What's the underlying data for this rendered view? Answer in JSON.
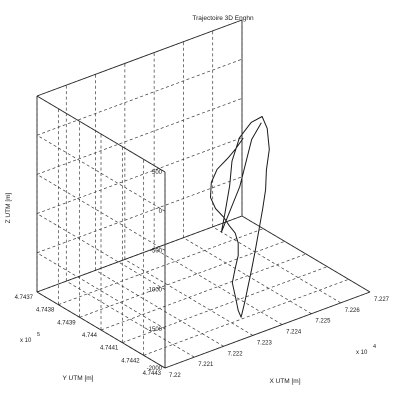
{
  "chart_data": {
    "type": "line",
    "projection": "3d",
    "title": "Trajectoire 3D Enghn",
    "xlabel": "X UTM [m]",
    "ylabel": "Y UTM [m]",
    "zlabel": "Z UTM [m]",
    "x_ticks": [
      "7.22",
      "7.221",
      "7.222",
      "7.223",
      "7.224",
      "7.225",
      "7.226",
      "7.227"
    ],
    "x_multiplier": "x 10",
    "x_multiplier_exp": "4",
    "y_ticks": [
      "4.7437",
      "4.7438",
      "4.7439",
      "4.744",
      "4.7441",
      "4.7442",
      "4.7443"
    ],
    "y_multiplier": "x 10",
    "y_multiplier_exp": "5",
    "z_ticks": [
      "-2000",
      "-1500",
      "-1000",
      "-500",
      "0",
      "500"
    ],
    "zlim": [
      -2000,
      500
    ],
    "grid": true,
    "series": [
      {
        "style": "black line",
        "points": [
          [
            72234,
            474420,
            300
          ],
          [
            72233,
            474418,
            150
          ],
          [
            72231,
            474417,
            40
          ],
          [
            72228,
            474416,
            -80
          ],
          [
            72226,
            474416,
            -220
          ],
          [
            72225,
            474417,
            -380
          ],
          [
            72226,
            474418,
            -520
          ],
          [
            72228,
            474419,
            -640
          ],
          [
            72230,
            474419,
            -780
          ],
          [
            72232,
            474419,
            -900
          ],
          [
            72233,
            474419,
            -1040
          ],
          [
            72233,
            474419,
            -1200
          ],
          [
            72232,
            474419,
            -1350
          ],
          [
            72231,
            474419,
            -1520
          ],
          [
            72232,
            474419,
            -1700
          ],
          [
            72233,
            474419,
            -1900
          ],
          [
            72234,
            474419,
            -2000
          ],
          [
            72236,
            474418,
            -1850
          ],
          [
            72237,
            474418,
            -1680
          ],
          [
            72239,
            474417,
            -1500
          ],
          [
            72241,
            474416,
            -1300
          ],
          [
            72243,
            474415,
            -1080
          ],
          [
            72245,
            474414,
            -850
          ],
          [
            72246,
            474414,
            -620
          ],
          [
            72247,
            474413,
            -400
          ],
          [
            72248,
            474413,
            -150
          ],
          [
            72248,
            474412,
            100
          ],
          [
            72247,
            474411,
            250
          ],
          [
            72244,
            474410,
            200
          ],
          [
            72240,
            474410,
            60
          ],
          [
            72236,
            474412,
            -150
          ],
          [
            72233,
            474415,
            -380
          ],
          [
            72230,
            474417,
            -640
          ],
          [
            72228,
            474418,
            -850
          ],
          [
            72235,
            474417,
            -380
          ],
          [
            72242,
            474413,
            60
          ],
          [
            72246,
            474412,
            200
          ]
        ]
      }
    ]
  }
}
